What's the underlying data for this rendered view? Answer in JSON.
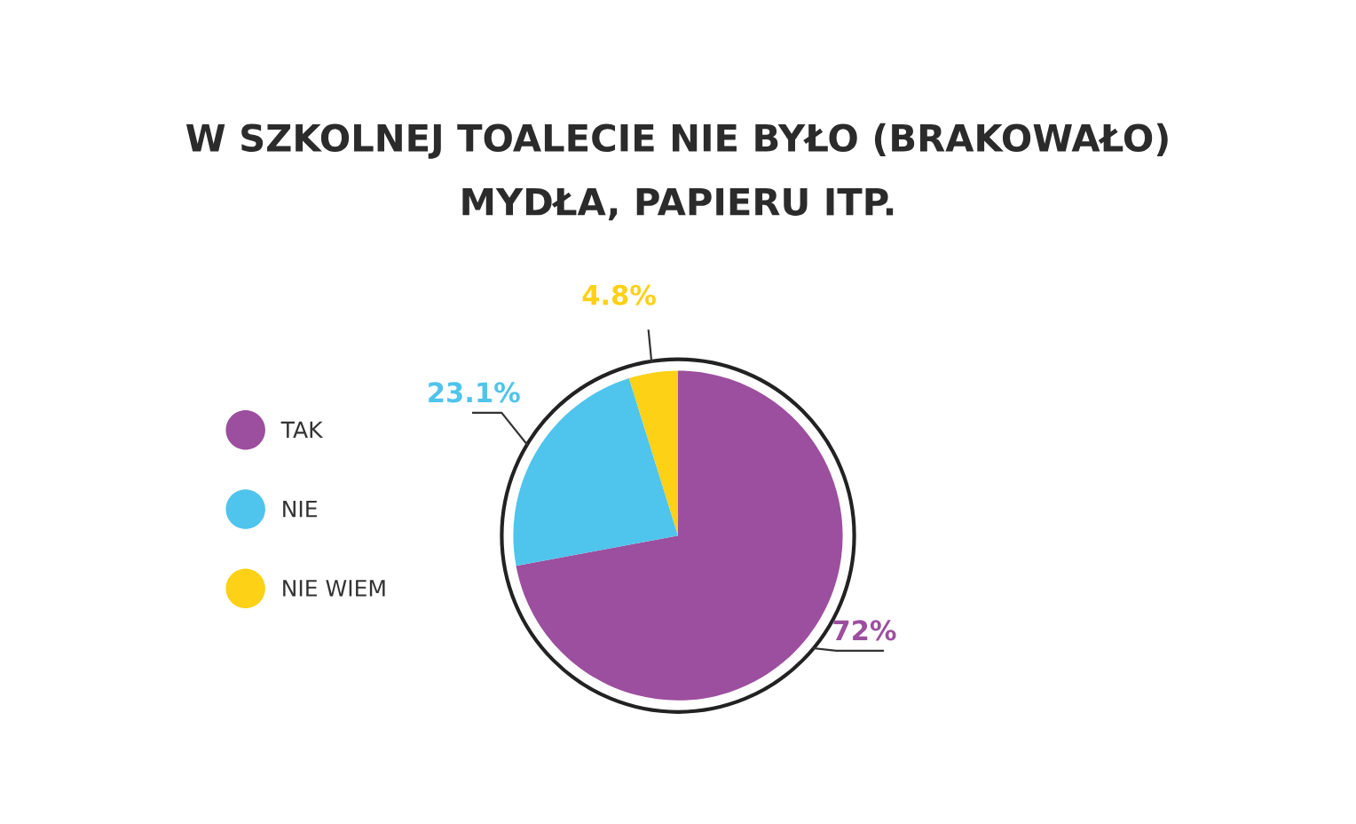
{
  "chart_data": {
    "type": "pie",
    "title": "W SZKOLNEJ TOALECIE NIE BYŁO (BRAKOWAŁO)\nMYDŁA, PAPIERU ITP.",
    "categories": [
      "TAK",
      "NIE",
      "NIE WIEM"
    ],
    "values": [
      72,
      23.1,
      4.8
    ],
    "colors": [
      "#9c4f9e",
      "#4fc4ec",
      "#fcd116"
    ],
    "value_labels": [
      "72%",
      "23.1%",
      "4.8%"
    ],
    "legend": "left"
  }
}
